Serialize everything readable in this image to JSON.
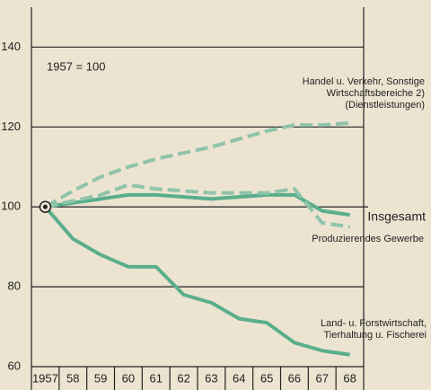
{
  "chart_data": {
    "type": "line",
    "annotation": "1957 = 100",
    "categories": [
      "1957",
      "58",
      "59",
      "60",
      "61",
      "62",
      "63",
      "64",
      "65",
      "66",
      "67",
      "68"
    ],
    "ylim": [
      60,
      150
    ],
    "yticks": [
      60,
      80,
      100,
      120,
      140
    ],
    "grid": true,
    "series": [
      {
        "name": [
          "Handel u. Verkehr, Sonstige",
          "Wirtschaftsbereiche 2)",
          "(Dienstleistungen)"
        ],
        "color": "#8fc4aa",
        "dashed": true,
        "values": [
          100,
          104,
          107.5,
          110,
          112,
          113.5,
          115,
          117,
          119,
          120.5,
          120.5,
          121
        ]
      },
      {
        "name": [
          "Insgesamt"
        ],
        "color": "#5aae8c",
        "dashed": false,
        "values": [
          100,
          101,
          102,
          103,
          103,
          102.5,
          102,
          102.5,
          103,
          103,
          99,
          98
        ]
      },
      {
        "name": [
          "Produzierendes Gewerbe"
        ],
        "color": "#8fc4aa",
        "dashed": true,
        "values": [
          100,
          101.5,
          103,
          105.5,
          104.5,
          104,
          103.5,
          103.5,
          103.5,
          104.5,
          96,
          95
        ]
      },
      {
        "name": [
          "Land- u. Forstwirtschaft,",
          "Tierhaltung u. Fischerei"
        ],
        "color": "#5aae8c",
        "dashed": false,
        "values": [
          100,
          92,
          88,
          85,
          85,
          78,
          76,
          72,
          71,
          66,
          64,
          63
        ]
      }
    ]
  }
}
